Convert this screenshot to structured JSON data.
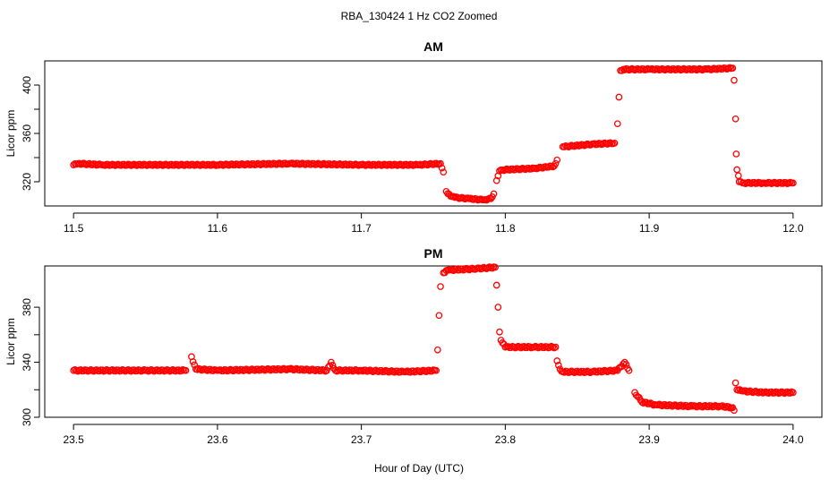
{
  "main_title": "RBA_130424  1 Hz CO2 Zoomed",
  "xlabel": "Hour of Day (UTC)",
  "chart_data": [
    {
      "type": "scatter",
      "title": "AM",
      "ylabel": "Licor ppm",
      "xlim": [
        11.5,
        12.0
      ],
      "ylim": [
        300,
        420
      ],
      "xticks": [
        11.5,
        11.6,
        11.7,
        11.8,
        11.9,
        12.0
      ],
      "xtick_labels": [
        "11.5",
        "11.6",
        "11.7",
        "11.8",
        "11.9",
        "12.0"
      ],
      "yticks": [
        320,
        360,
        400
      ],
      "ytick_labels": [
        "320",
        "360",
        "400"
      ],
      "marker_color": "#ff0000",
      "series": [
        {
          "x": [
            11.5,
            11.503,
            11.52,
            11.55,
            11.6,
            11.65,
            11.7,
            11.74,
            11.755,
            11.757,
            11.759,
            11.762,
            11.765,
            11.775,
            11.785,
            11.79,
            11.792,
            11.794,
            11.796,
            11.8,
            11.82,
            11.834,
            11.836,
            11.84,
            11.86,
            11.876,
            11.878,
            11.879,
            11.88,
            11.882,
            11.9,
            11.94,
            11.958,
            11.959,
            11.96,
            11.9605,
            11.961,
            11.962,
            11.9625,
            11.965,
            11.98,
            12.0
          ],
          "y": [
            334,
            335,
            334,
            334,
            334,
            335,
            334,
            334,
            335,
            328,
            312,
            308,
            307,
            306,
            305,
            306,
            310,
            321,
            329,
            330,
            331,
            333,
            338,
            349,
            351,
            352,
            368,
            390,
            412,
            413,
            413,
            413,
            414,
            404,
            372,
            343,
            330,
            325,
            320,
            319,
            319,
            319
          ]
        }
      ]
    },
    {
      "type": "scatter",
      "title": "PM",
      "ylabel": "Licor ppm",
      "xlim": [
        23.5,
        24.0
      ],
      "ylim": [
        300,
        410
      ],
      "xticks": [
        23.5,
        23.6,
        23.7,
        23.8,
        23.9,
        24.0
      ],
      "xtick_labels": [
        "23.5",
        "23.6",
        "23.7",
        "23.8",
        "23.9",
        "24.0"
      ],
      "yticks": [
        300,
        340,
        380
      ],
      "ytick_labels": [
        "300",
        "340",
        "380"
      ],
      "marker_color": "#ff0000",
      "series": [
        {
          "x": [
            23.5,
            23.55,
            23.578,
            23.582,
            23.585,
            23.6,
            23.65,
            23.676,
            23.679,
            23.682,
            23.7,
            23.73,
            23.752,
            23.753,
            23.754,
            23.755,
            23.757,
            23.76,
            23.78,
            23.793,
            23.794,
            23.795,
            23.796,
            23.797,
            23.8,
            23.82,
            23.835,
            23.836,
            23.838,
            23.84,
            23.86,
            23.878,
            23.883,
            23.886,
            23.89,
            23.895,
            23.905,
            23.93,
            23.95,
            23.958,
            23.959,
            23.96,
            23.961,
            23.965,
            23.98,
            24.0
          ],
          "y": [
            334,
            334,
            334,
            344,
            335,
            334,
            335,
            334,
            340,
            334,
            334,
            333,
            334,
            349,
            374,
            395,
            405,
            407,
            408,
            409,
            396,
            380,
            362,
            356,
            351,
            351,
            351,
            341,
            335,
            333,
            333,
            334,
            340,
            334,
            318,
            311,
            309,
            308,
            308,
            307,
            305,
            325,
            320,
            319,
            318,
            318
          ]
        }
      ]
    }
  ]
}
